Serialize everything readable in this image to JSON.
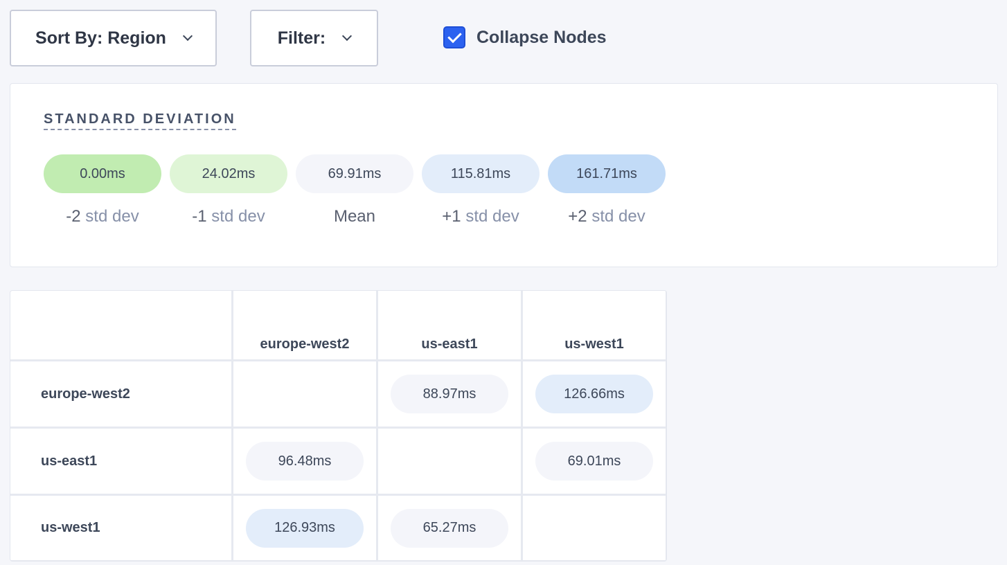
{
  "toolbar": {
    "sort_label": "Sort By: Region",
    "filter_label": "Filter:",
    "collapse_label": "Collapse Nodes",
    "collapse_checked": true
  },
  "std_dev": {
    "title": "STANDARD DEVIATION",
    "items": [
      {
        "value": "0.00ms",
        "prefix": "-2",
        "suffix": " std dev",
        "color": "#c1ecb1"
      },
      {
        "value": "24.02ms",
        "prefix": "-1",
        "suffix": " std dev",
        "color": "#dff5d6"
      },
      {
        "value": "69.91ms",
        "prefix": "Mean",
        "suffix": "",
        "color": "#f4f5fa"
      },
      {
        "value": "115.81ms",
        "prefix": "+1",
        "suffix": " std dev",
        "color": "#e3edfa"
      },
      {
        "value": "161.71ms",
        "prefix": "+2",
        "suffix": " std dev",
        "color": "#c2dbf7"
      }
    ]
  },
  "matrix": {
    "columns": [
      "europe-west2",
      "us-east1",
      "us-west1"
    ],
    "rows": [
      {
        "label": "europe-west2",
        "cells": [
          null,
          {
            "value": "88.97ms",
            "color": "#f4f5fa"
          },
          {
            "value": "126.66ms",
            "color": "#e3edfa"
          }
        ]
      },
      {
        "label": "us-east1",
        "cells": [
          {
            "value": "96.48ms",
            "color": "#f4f5fa"
          },
          null,
          {
            "value": "69.01ms",
            "color": "#f4f5fa"
          }
        ]
      },
      {
        "label": "us-west1",
        "cells": [
          {
            "value": "126.93ms",
            "color": "#e3edfa"
          },
          {
            "value": "65.27ms",
            "color": "#f4f5fa"
          },
          null
        ]
      }
    ]
  }
}
